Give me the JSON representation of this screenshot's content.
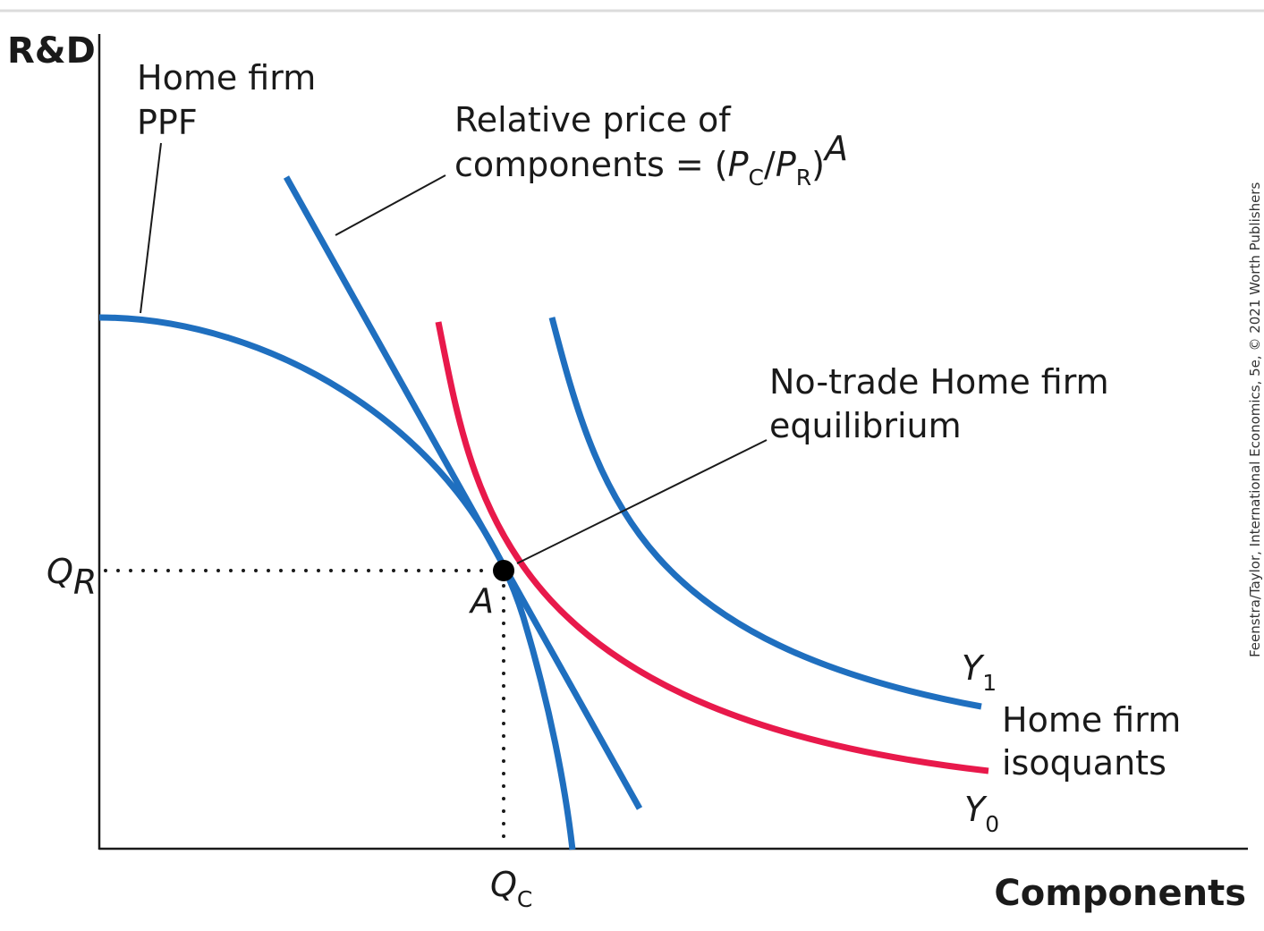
{
  "diagram": {
    "axes": {
      "y_title": "R&D",
      "x_title": "Components"
    },
    "ticks": {
      "qr_main": "Q",
      "qr_sub": "R",
      "qc_main": "Q",
      "qc_sub": "C"
    },
    "point": {
      "label": "A"
    },
    "labels": {
      "ppf_line1": "Home firm",
      "ppf_line2": "PPF",
      "price_line1": "Relative price of",
      "price_line2_text": "components = (",
      "price_pc": "P",
      "price_pc_sub": "C",
      "price_slash": "/",
      "price_pr": "P",
      "price_pr_sub": "R",
      "price_close": ")",
      "price_sup": "A",
      "eq_line1": "No-trade Home firm",
      "eq_line2": "equilibrium",
      "iso_line1": "Home firm",
      "iso_line2": "isoquants",
      "y1_main": "Y",
      "y1_sub": "1",
      "y0_main": "Y",
      "y0_sub": "0"
    },
    "credit": "Feenstra/Taylor, International Economics, 5e, © 2021 Worth Publishers"
  },
  "colors": {
    "blue": "#1f6fbf",
    "red": "#e8194b",
    "ink": "#1a1a1a"
  }
}
